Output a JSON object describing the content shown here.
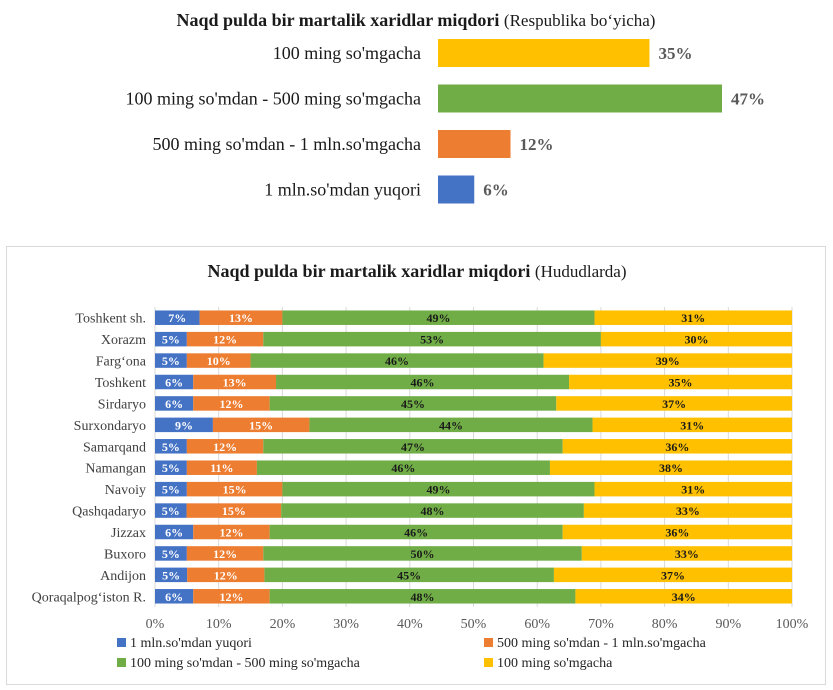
{
  "colors": {
    "under_100k": "#FFC000",
    "100k_500k": "#70AD47",
    "500k_1m": "#ED7D31",
    "over_1m": "#4472C4",
    "grid": "#d9d9d9",
    "label_gray": "#595959"
  },
  "chart_data": [
    {
      "type": "bar",
      "orientation": "horizontal",
      "title": "Naqd pulda bir martalik xaridlar miqdori",
      "subtitle": "(Respublika bo‘yicha)",
      "categories": [
        "100 ming so'mgacha",
        "100 ming so'mdan -  500 ming so'mgacha",
        "500 ming so'mdan - 1 mln.so'mgacha",
        "1 mln.so'mdan yuqori"
      ],
      "values": [
        35,
        47,
        12,
        6
      ],
      "value_labels": [
        "35%",
        "47%",
        "12%",
        "6%"
      ],
      "colors": [
        "#FFC000",
        "#70AD47",
        "#ED7D31",
        "#4472C4"
      ],
      "grid": false,
      "xlim": [
        0,
        47
      ]
    },
    {
      "type": "bar",
      "orientation": "horizontal",
      "stacked": "percent",
      "title": "Naqd pulda bir martalik xaridlar miqdori",
      "subtitle": "(Hududlarda)",
      "categories": [
        "Toshkent sh.",
        "Xorazm",
        "Farg‘ona",
        "Toshkent",
        "Sirdaryo",
        "Surxondaryo",
        "Samarqand",
        "Namangan",
        "Navoiy",
        "Qashqadaryo",
        "Jizzax",
        "Buxoro",
        "Andijon",
        "Qoraqalpog‘iston R."
      ],
      "series": [
        {
          "name": "1 mln.so'mdan yuqori",
          "color": "#4472C4",
          "values": [
            7,
            5,
            5,
            6,
            6,
            9,
            5,
            5,
            5,
            5,
            6,
            5,
            5,
            6
          ],
          "labels": [
            "7%",
            "5%",
            "5%",
            "6%",
            "6%",
            "9%",
            "5%",
            "5%",
            "5%",
            "5%",
            "6%",
            "5%",
            "5%",
            "6%"
          ]
        },
        {
          "name": "500 ming so'mdan - 1 mln.so'mgacha",
          "color": "#ED7D31",
          "values": [
            13,
            12,
            10,
            13,
            12,
            15,
            12,
            11,
            15,
            15,
            12,
            12,
            12,
            12
          ],
          "labels": [
            "13%",
            "12%",
            "10%",
            "13%",
            "12%",
            "15%",
            "12%",
            "11%",
            "15%",
            "15%",
            "12%",
            "12%",
            "12%",
            "12%"
          ]
        },
        {
          "name": "100 ming so'mdan -  500 ming so'mgacha",
          "color": "#70AD47",
          "values": [
            49,
            53,
            46,
            46,
            45,
            44,
            47,
            46,
            49,
            48,
            46,
            50,
            45,
            48
          ],
          "labels": [
            "49%",
            "53%",
            "46%",
            "46%",
            "45%",
            "44%",
            "47%",
            "46%",
            "49%",
            "48%",
            "46%",
            "50%",
            "45%",
            "48%"
          ]
        },
        {
          "name": "100 ming so'mgacha",
          "color": "#FFC000",
          "values": [
            31,
            30,
            39,
            35,
            37,
            31,
            36,
            38,
            31,
            33,
            36,
            33,
            37,
            34
          ],
          "labels": [
            "31%",
            "30%",
            "39%",
            "35%",
            "37%",
            "31%",
            "36%",
            "38%",
            "31%",
            "33%",
            "36%",
            "33%",
            "37%",
            "34%"
          ]
        }
      ],
      "x_ticks": [
        "0%",
        "10%",
        "20%",
        "30%",
        "40%",
        "50%",
        "60%",
        "70%",
        "80%",
        "90%",
        "100%"
      ],
      "xlim": [
        0,
        100
      ],
      "grid": true,
      "legend_position": "bottom"
    }
  ]
}
